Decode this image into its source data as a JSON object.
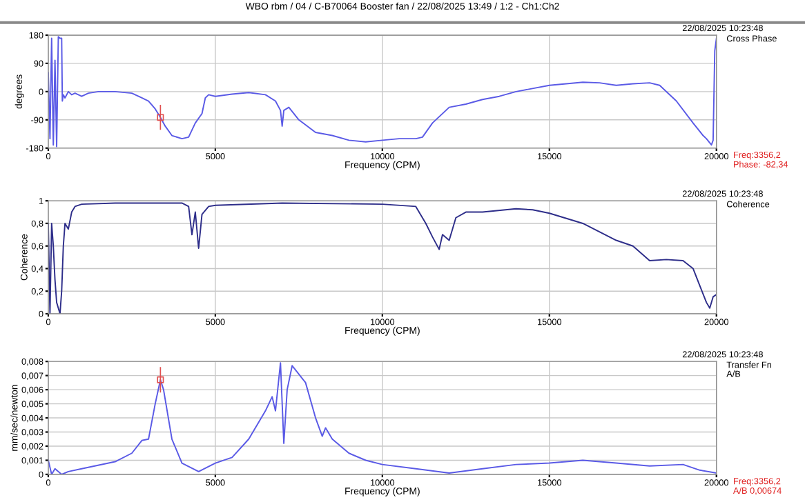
{
  "chart_data": [
    {
      "type": "line",
      "title": "WBO rbm / 04 / C-B70064 Booster fan / 22/08/2025 13:49 / 1:2 - Ch1:Ch2",
      "xlabel": "Frequency (CPM)",
      "ylabel": "degrees",
      "grid": true,
      "line_style": "solid",
      "xlim": [
        0,
        20000
      ],
      "xticks": [
        0,
        5000,
        10000,
        15000,
        20000
      ],
      "ylim": [
        -180,
        180
      ],
      "yticks": [
        -180,
        -90,
        0,
        90,
        180
      ],
      "annotations": [
        "22/08/2025 10:23:48",
        "Cross Phase",
        "Freq:3356,2\nPhase: -82,34"
      ],
      "series": [
        {
          "color": "#5a5ae6",
          "x": [
            0,
            50,
            100,
            150,
            200,
            250,
            300,
            350,
            400,
            420,
            450,
            500,
            600,
            700,
            800,
            1000,
            1200,
            1500,
            2000,
            2500,
            2800,
            3000,
            3200,
            3356,
            3500,
            3700,
            4000,
            4200,
            4400,
            4600,
            4700,
            4800,
            5000,
            5500,
            6000,
            6500,
            6800,
            6950,
            7000,
            7050,
            7200,
            7500,
            8000,
            8500,
            9000,
            9500,
            10000,
            10500,
            11000,
            11200,
            11500,
            12000,
            12500,
            13000,
            13500,
            14000,
            15000,
            15500,
            16000,
            16500,
            17000,
            17500,
            18000,
            18300,
            18800,
            19300,
            19600,
            19700,
            19850,
            19900,
            19950,
            20000
          ],
          "values": [
            60,
            -150,
            170,
            -170,
            100,
            -175,
            175,
            170,
            170,
            -30,
            -10,
            -20,
            0,
            -10,
            -5,
            -15,
            -5,
            0,
            0,
            -5,
            -20,
            -30,
            -55,
            -82,
            -110,
            -140,
            -150,
            -145,
            -100,
            -70,
            -20,
            -10,
            -15,
            -8,
            -3,
            -10,
            -30,
            -60,
            -110,
            -60,
            -50,
            -90,
            -130,
            -140,
            -155,
            -160,
            -155,
            -150,
            -150,
            -145,
            -100,
            -50,
            -40,
            -25,
            -15,
            0,
            20,
            25,
            30,
            28,
            20,
            25,
            28,
            20,
            -30,
            -100,
            -140,
            -150,
            -170,
            -155,
            130,
            170
          ]
        },
        {
          "type": "scatter",
          "marker": "square",
          "color": "#e05050",
          "x": [
            3356.2
          ],
          "values": [
            -82
          ],
          "errors": [
            40
          ]
        }
      ]
    },
    {
      "type": "line",
      "xlabel": "Frequency (CPM)",
      "ylabel": "Coherence",
      "grid": true,
      "line_style": "solid",
      "xlim": [
        0,
        20000
      ],
      "xticks": [
        0,
        5000,
        10000,
        15000,
        20000
      ],
      "ylim": [
        0,
        1
      ],
      "yticks": [
        0,
        {
          "value": 0.2,
          "label": "0,2"
        },
        {
          "value": 0.4,
          "label": "0,4"
        },
        {
          "value": 0.6,
          "label": "0,6"
        },
        {
          "value": 0.8,
          "label": "0,8"
        },
        1
      ],
      "annotations": [
        "22/08/2025 10:23:48",
        "Coherence"
      ],
      "series": [
        {
          "color": "#2e2e8a",
          "x": [
            0,
            50,
            100,
            150,
            200,
            250,
            300,
            350,
            400,
            450,
            500,
            600,
            700,
            800,
            1000,
            2000,
            4000,
            4200,
            4300,
            4400,
            4500,
            4600,
            4800,
            5000,
            7000,
            10000,
            11000,
            11300,
            11500,
            11700,
            11800,
            12000,
            12200,
            12500,
            13000,
            14000,
            14500,
            15000,
            16000,
            17000,
            17500,
            18000,
            18500,
            19000,
            19300,
            19500,
            19700,
            19800,
            19900,
            20000
          ],
          "values": [
            0.8,
            0,
            0.8,
            0.6,
            0.3,
            0.1,
            0.05,
            0,
            0.2,
            0.6,
            0.8,
            0.75,
            0.9,
            0.95,
            0.97,
            0.98,
            0.98,
            0.95,
            0.7,
            0.9,
            0.58,
            0.88,
            0.95,
            0.96,
            0.98,
            0.97,
            0.95,
            0.8,
            0.68,
            0.57,
            0.7,
            0.65,
            0.85,
            0.9,
            0.9,
            0.93,
            0.92,
            0.89,
            0.8,
            0.65,
            0.6,
            0.47,
            0.48,
            0.47,
            0.4,
            0.25,
            0.1,
            0.05,
            0.15,
            0.17
          ]
        }
      ]
    },
    {
      "type": "line",
      "xlabel": "Frequency (CPM)",
      "ylabel": "mm/sec/newton",
      "grid": true,
      "line_style": "solid",
      "xlim": [
        0,
        20000
      ],
      "xticks": [
        0,
        5000,
        10000,
        15000,
        20000
      ],
      "ylim": [
        0,
        0.008
      ],
      "yticks": [
        0,
        {
          "value": 0.001,
          "label": "0,001"
        },
        {
          "value": 0.002,
          "label": "0,002"
        },
        {
          "value": 0.003,
          "label": "0,003"
        },
        {
          "value": 0.004,
          "label": "0,004"
        },
        {
          "value": 0.005,
          "label": "0,005"
        },
        {
          "value": 0.006,
          "label": "0,006"
        },
        {
          "value": 0.007,
          "label": "0,007"
        },
        {
          "value": 0.008,
          "label": "0,008"
        }
      ],
      "annotations": [
        "22/08/2025 10:23:48",
        "Transfer Fn",
        "A/B",
        "Freq:3356,2\nA/B 0,00674"
      ],
      "series": [
        {
          "color": "#5a5ae6",
          "x": [
            0,
            100,
            200,
            400,
            600,
            1000,
            2000,
            2500,
            2800,
            3000,
            3200,
            3356,
            3450,
            3700,
            4000,
            4500,
            5000,
            5500,
            6000,
            6500,
            6700,
            6800,
            6950,
            7050,
            7150,
            7300,
            7700,
            8000,
            8200,
            8300,
            8500,
            9000,
            9500,
            10000,
            11000,
            12000,
            13000,
            14000,
            15000,
            16000,
            16500,
            17000,
            18000,
            19000,
            19500,
            20000
          ],
          "values": [
            0.001,
            0,
            0.0004,
            0,
            0.0002,
            0.0004,
            0.0009,
            0.0015,
            0.0024,
            0.0025,
            0.005,
            0.0067,
            0.006,
            0.0025,
            0.0008,
            0.0002,
            0.0008,
            0.0012,
            0.0025,
            0.0045,
            0.0055,
            0.0045,
            0.0079,
            0.0022,
            0.006,
            0.0077,
            0.0065,
            0.004,
            0.0027,
            0.0033,
            0.0025,
            0.0015,
            0.001,
            0.0007,
            0.0004,
            0.0001,
            0.0004,
            0.0007,
            0.0008,
            0.001,
            0.0009,
            0.0008,
            0.0006,
            0.0007,
            0.0003,
            0.0001
          ]
        },
        {
          "type": "scatter",
          "marker": "square",
          "color": "#e05050",
          "x": [
            3356.2
          ],
          "values": [
            0.0067
          ],
          "errors": [
            0.0009
          ]
        }
      ]
    }
  ]
}
